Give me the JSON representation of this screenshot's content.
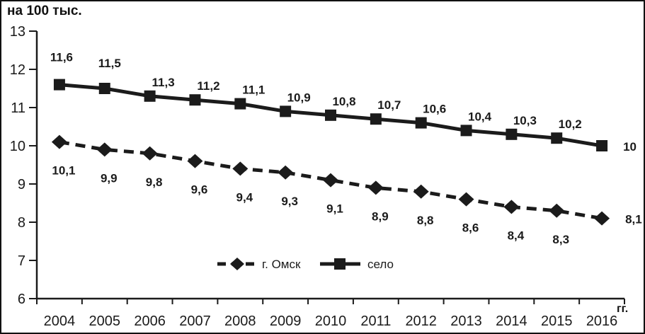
{
  "chart_data": {
    "type": "line",
    "title": "на 100 тыс.",
    "x_unit_label": "гг.",
    "categories": [
      "2004",
      "2005",
      "2006",
      "2007",
      "2008",
      "2009",
      "2010",
      "2011",
      "2012",
      "2013",
      "2014",
      "2015",
      "2016"
    ],
    "ylim": [
      6,
      13
    ],
    "y_ticks": [
      6,
      7,
      8,
      9,
      10,
      11,
      12,
      13
    ],
    "grid": false,
    "legend_position": "inside-bottom-center",
    "colors": {
      "ink": "#1b1b1b",
      "background": "#ffffff"
    },
    "series": [
      {
        "name": "г. Омск",
        "line_style": "dashed",
        "marker": "diamond",
        "label_position": "below",
        "values": [
          10.1,
          9.9,
          9.8,
          9.6,
          9.4,
          9.3,
          9.1,
          8.9,
          8.8,
          8.6,
          8.4,
          8.3,
          8.1
        ],
        "labels": [
          "10,1",
          "9,9",
          "9,8",
          "9,6",
          "9,4",
          "9,3",
          "9,1",
          "8,9",
          "8,8",
          "8,6",
          "8,4",
          "8,3",
          "8,1"
        ]
      },
      {
        "name": "село",
        "line_style": "solid",
        "marker": "square",
        "label_position": "above",
        "values": [
          11.6,
          11.5,
          11.3,
          11.2,
          11.1,
          10.9,
          10.8,
          10.7,
          10.6,
          10.4,
          10.3,
          10.2,
          10
        ],
        "labels": [
          "11,6",
          "11,5",
          "11,3",
          "11,2",
          "11,1",
          "10,9",
          "10,8",
          "10,7",
          "10,6",
          "10,4",
          "10,3",
          "10,2",
          "10"
        ]
      }
    ]
  }
}
